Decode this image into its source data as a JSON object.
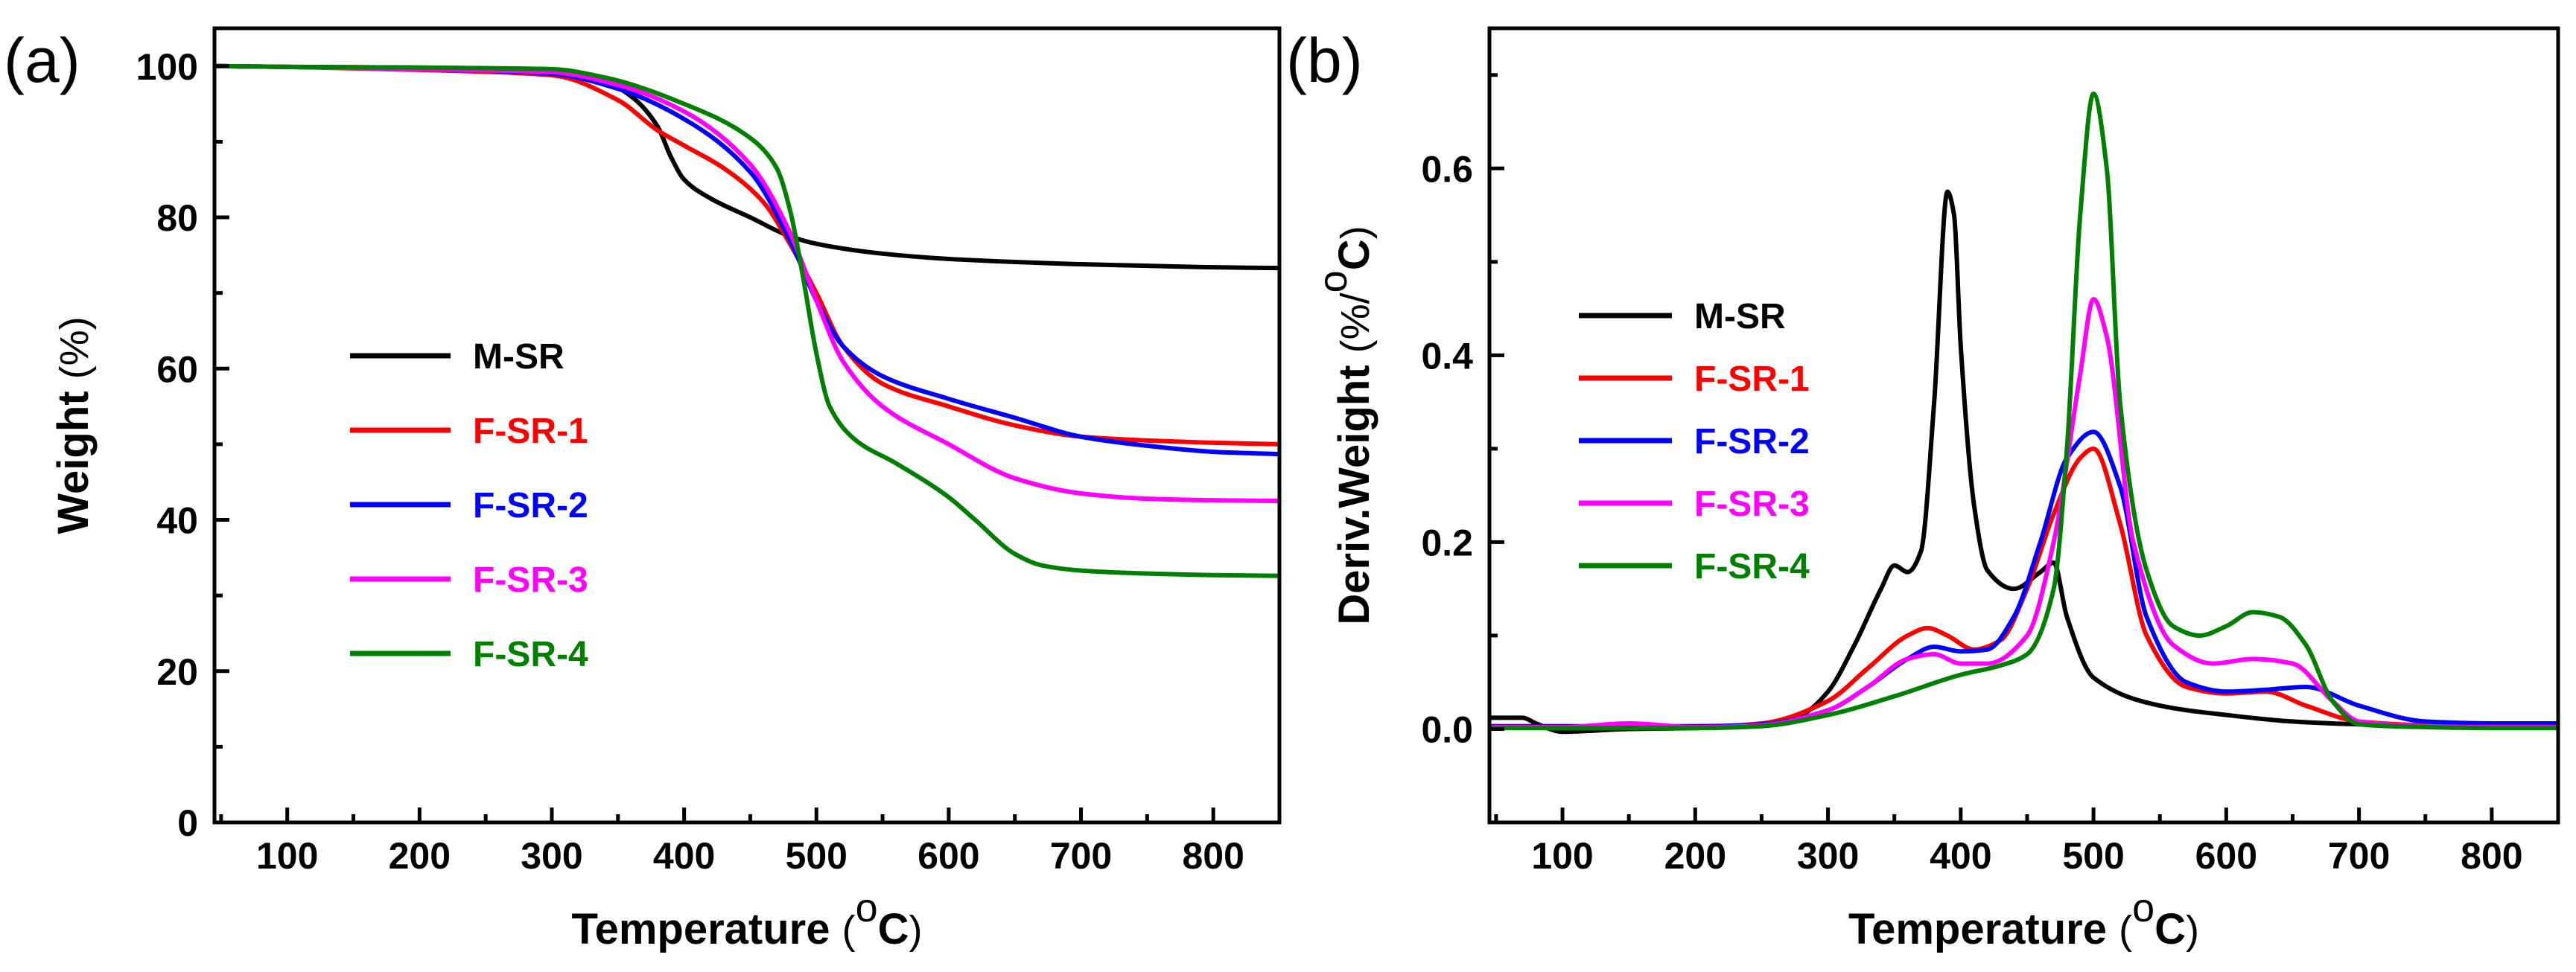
{
  "chart_data": [
    {
      "panel_label": "(a)",
      "type": "line",
      "xlabel": "Temperature",
      "xunit": "(oC)",
      "ylabel": "Weight",
      "yunit": "(%)",
      "xlim": [
        45,
        850
      ],
      "ylim": [
        0,
        105
      ],
      "xticks": [
        100,
        200,
        300,
        400,
        500,
        600,
        700,
        800
      ],
      "yticks": [
        0,
        20,
        40,
        60,
        80,
        100
      ],
      "legend_position": "center-left",
      "series": [
        {
          "name": "M-SR",
          "color": "#000000",
          "x": [
            45,
            100,
            200,
            300,
            330,
            360,
            380,
            390,
            400,
            420,
            450,
            480,
            500,
            550,
            600,
            650,
            700,
            750,
            800,
            850
          ],
          "y": [
            100,
            99.9,
            99.8,
            99.5,
            98.8,
            96,
            92,
            88,
            85,
            82.5,
            80,
            77.5,
            76.5,
            75.2,
            74.5,
            74.1,
            73.8,
            73.6,
            73.4,
            73.3
          ]
        },
        {
          "name": "F-SR-1",
          "color": "#ff0000",
          "x": [
            45,
            100,
            200,
            300,
            350,
            380,
            400,
            430,
            460,
            480,
            500,
            520,
            550,
            600,
            650,
            700,
            750,
            800,
            850
          ],
          "y": [
            100,
            99.9,
            99.5,
            98.8,
            95.5,
            91.5,
            89.5,
            86.5,
            82,
            76.5,
            70,
            63,
            58,
            55,
            52.5,
            51,
            50.5,
            50.2,
            50
          ]
        },
        {
          "name": "F-SR-2",
          "color": "#0000ff",
          "x": [
            45,
            100,
            200,
            300,
            350,
            400,
            450,
            480,
            500,
            520,
            550,
            600,
            650,
            700,
            750,
            800,
            850
          ],
          "y": [
            100,
            99.9,
            99.6,
            99,
            97,
            93,
            86,
            77,
            69,
            63,
            59,
            56,
            53.5,
            51,
            49.8,
            49,
            48.7
          ]
        },
        {
          "name": "F-SR-3",
          "color": "#ff00ff",
          "x": [
            45,
            100,
            200,
            300,
            350,
            400,
            450,
            480,
            500,
            520,
            550,
            600,
            650,
            700,
            750,
            800,
            850
          ],
          "y": [
            100,
            99.9,
            99.6,
            99.2,
            97.5,
            94,
            87,
            78,
            69,
            61,
            55,
            50,
            45.5,
            43.5,
            42.8,
            42.6,
            42.5
          ]
        },
        {
          "name": "F-SR-4",
          "color": "#008000",
          "x": [
            45,
            100,
            200,
            300,
            340,
            400,
            450,
            470,
            480,
            490,
            500,
            510,
            530,
            560,
            600,
            620,
            650,
            670,
            700,
            750,
            800,
            850
          ],
          "y": [
            100,
            99.9,
            99.8,
            99.6,
            98.5,
            95,
            90.5,
            86.5,
            81,
            72,
            62,
            55,
            50.5,
            47.5,
            43,
            40,
            35.5,
            34,
            33.3,
            32.9,
            32.7,
            32.6
          ]
        }
      ]
    },
    {
      "panel_label": "(b)",
      "type": "line",
      "xlabel": "Temperature",
      "xunit": "(oC)",
      "ylabel": "Deriv.Weight",
      "yunit": "(%/oC)",
      "xlim": [
        45,
        850
      ],
      "ylim": [
        -0.1,
        0.75
      ],
      "xticks": [
        100,
        200,
        300,
        400,
        500,
        600,
        700,
        800
      ],
      "yticks": [
        0.0,
        0.2,
        0.4,
        0.6
      ],
      "legend_position": "upper-left",
      "series": [
        {
          "name": "M-SR",
          "color": "#000000",
          "x": [
            45,
            70,
            80,
            100,
            150,
            200,
            250,
            280,
            300,
            320,
            340,
            350,
            360,
            370,
            380,
            390,
            395,
            400,
            410,
            420,
            440,
            460,
            470,
            480,
            500,
            550,
            600,
            650,
            700,
            750,
            800,
            850
          ],
          "y": [
            0.012,
            0.012,
            0.006,
            -0.003,
            0.0,
            0.001,
            0.004,
            0.015,
            0.04,
            0.09,
            0.15,
            0.175,
            0.168,
            0.19,
            0.35,
            0.575,
            0.55,
            0.41,
            0.24,
            0.17,
            0.15,
            0.168,
            0.178,
            0.12,
            0.055,
            0.025,
            0.015,
            0.008,
            0.005,
            0.004,
            0.003,
            0.003
          ]
        },
        {
          "name": "F-SR-1",
          "color": "#ff0000",
          "x": [
            45,
            100,
            200,
            250,
            300,
            330,
            360,
            375,
            390,
            410,
            430,
            450,
            470,
            490,
            500,
            520,
            540,
            570,
            600,
            630,
            660,
            700,
            750,
            800,
            850
          ],
          "y": [
            0.002,
            0.002,
            0.002,
            0.006,
            0.03,
            0.065,
            0.1,
            0.108,
            0.1,
            0.085,
            0.095,
            0.15,
            0.23,
            0.29,
            0.3,
            0.22,
            0.1,
            0.045,
            0.038,
            0.04,
            0.025,
            0.008,
            0.004,
            0.003,
            0.003
          ]
        },
        {
          "name": "F-SR-2",
          "color": "#0000ff",
          "x": [
            45,
            100,
            200,
            250,
            300,
            330,
            360,
            380,
            400,
            420,
            440,
            460,
            480,
            500,
            520,
            540,
            570,
            600,
            630,
            660,
            700,
            750,
            800,
            850
          ],
          "y": [
            0.003,
            0.003,
            0.003,
            0.005,
            0.02,
            0.045,
            0.075,
            0.088,
            0.083,
            0.085,
            0.12,
            0.2,
            0.29,
            0.318,
            0.26,
            0.12,
            0.05,
            0.04,
            0.042,
            0.045,
            0.025,
            0.008,
            0.006,
            0.006
          ]
        },
        {
          "name": "F-SR-3",
          "color": "#ff00ff",
          "x": [
            45,
            100,
            150,
            200,
            250,
            300,
            330,
            360,
            380,
            400,
            420,
            450,
            470,
            490,
            500,
            510,
            530,
            560,
            590,
            620,
            650,
            680,
            700,
            750,
            800,
            850
          ],
          "y": [
            0.002,
            0.002,
            0.006,
            0.002,
            0.004,
            0.02,
            0.045,
            0.075,
            0.08,
            0.07,
            0.07,
            0.1,
            0.2,
            0.38,
            0.46,
            0.42,
            0.2,
            0.09,
            0.07,
            0.075,
            0.07,
            0.03,
            0.008,
            0.003,
            0.002,
            0.002
          ]
        },
        {
          "name": "F-SR-4",
          "color": "#008000",
          "x": [
            45,
            100,
            200,
            250,
            300,
            350,
            400,
            430,
            450,
            470,
            480,
            490,
            500,
            510,
            520,
            540,
            560,
            580,
            600,
            620,
            640,
            660,
            680,
            700,
            750,
            800,
            850
          ],
          "y": [
            0.001,
            0.001,
            0.001,
            0.003,
            0.015,
            0.035,
            0.058,
            0.068,
            0.08,
            0.15,
            0.3,
            0.55,
            0.68,
            0.6,
            0.35,
            0.17,
            0.11,
            0.1,
            0.11,
            0.125,
            0.12,
            0.09,
            0.03,
            0.005,
            0.002,
            0.001,
            0.001
          ]
        }
      ]
    }
  ]
}
